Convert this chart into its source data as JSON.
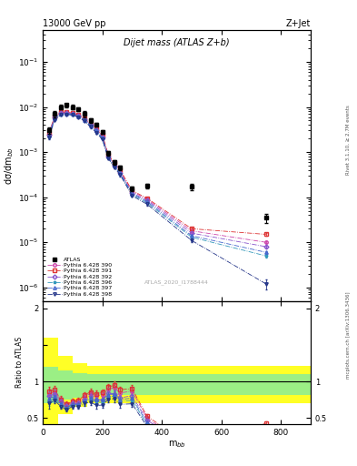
{
  "title_top": "13000 GeV pp",
  "title_right": "Z+Jet",
  "plot_title": "Dijet mass (ATLAS Z+b)",
  "ylabel_main": "dσ/dm$_{bb}$",
  "ylabel_ratio": "Ratio to ATLAS",
  "xlabel": "m$_{bb}$",
  "watermark": "ATLAS_2020_I1788444",
  "right_label_top": "Rivet 3.1.10, ≥ 2.7M events",
  "right_label_bot": "mcplots.cern.ch [arXiv:1306.3436]",
  "atlas_x": [
    20,
    40,
    60,
    80,
    100,
    120,
    140,
    160,
    180,
    200,
    220,
    240,
    260,
    300,
    350,
    500,
    750
  ],
  "atlas_y": [
    0.003,
    0.007,
    0.01,
    0.011,
    0.01,
    0.009,
    0.007,
    0.005,
    0.004,
    0.0028,
    0.00095,
    0.0006,
    0.00045,
    0.000155,
    0.00018,
    0.00017,
    3.5e-05
  ],
  "atlas_yerr": [
    0.0005,
    0.001,
    0.001,
    0.001,
    0.001,
    0.001,
    0.001,
    0.0005,
    0.0004,
    0.0003,
    0.0001,
    7e-05,
    5e-05,
    2e-05,
    2e-05,
    2.5e-05,
    8e-06
  ],
  "pythia_x": [
    20,
    40,
    60,
    80,
    100,
    120,
    140,
    160,
    180,
    200,
    220,
    240,
    260,
    300,
    350,
    500,
    750
  ],
  "series": [
    {
      "label": "Pythia 6.428 390",
      "color": "#cc44aa",
      "marker": "o",
      "linestyle": "-.",
      "y": [
        0.0025,
        0.006,
        0.0075,
        0.0075,
        0.0072,
        0.0065,
        0.0055,
        0.0042,
        0.0032,
        0.0023,
        0.00085,
        0.00055,
        0.00038,
        0.000135,
        9e-05,
        1.8e-05,
        1e-05
      ],
      "yerr": [
        0.0002,
        0.0004,
        0.0004,
        0.0004,
        0.0004,
        0.0003,
        0.0003,
        0.0002,
        0.0002,
        0.0001,
        4e-05,
        3e-05,
        2e-05,
        7e-06,
        5e-06,
        1e-06,
        5e-07
      ]
    },
    {
      "label": "Pythia 6.428 391",
      "color": "#dd3333",
      "marker": "s",
      "linestyle": "-.",
      "y": [
        0.0026,
        0.0062,
        0.0076,
        0.0076,
        0.0073,
        0.0067,
        0.0057,
        0.0043,
        0.0033,
        0.0024,
        0.00088,
        0.00057,
        0.0004,
        0.00014,
        9.5e-05,
        2e-05,
        1.5e-05
      ],
      "yerr": [
        0.0002,
        0.0004,
        0.0004,
        0.0004,
        0.0004,
        0.0003,
        0.0003,
        0.0002,
        0.0002,
        0.0001,
        4e-05,
        3e-05,
        2e-05,
        7e-06,
        5e-06,
        1e-06,
        8e-07
      ]
    },
    {
      "label": "Pythia 6.428 392",
      "color": "#8855cc",
      "marker": "D",
      "linestyle": "-.",
      "y": [
        0.0024,
        0.0058,
        0.0073,
        0.0073,
        0.007,
        0.0063,
        0.0053,
        0.004,
        0.003,
        0.0021,
        0.0008,
        0.0005,
        0.00035,
        0.000125,
        8.5e-05,
        1.6e-05,
        8e-06
      ],
      "yerr": [
        0.0002,
        0.0004,
        0.0004,
        0.0004,
        0.0004,
        0.0003,
        0.0003,
        0.0002,
        0.0002,
        0.0001,
        4e-05,
        3e-05,
        2e-05,
        7e-06,
        5e-06,
        1e-06,
        5e-07
      ]
    },
    {
      "label": "Pythia 6.428 396",
      "color": "#3399bb",
      "marker": "*",
      "linestyle": "-.",
      "y": [
        0.0022,
        0.0054,
        0.0068,
        0.007,
        0.0068,
        0.0061,
        0.0051,
        0.0038,
        0.0029,
        0.002,
        0.00075,
        0.00048,
        0.00033,
        0.000115,
        7.5e-05,
        1.3e-05,
        5e-06
      ],
      "yerr": [
        0.0002,
        0.0003,
        0.0003,
        0.0003,
        0.0003,
        0.0003,
        0.0003,
        0.0002,
        0.0002,
        0.0001,
        4e-05,
        3e-05,
        2e-05,
        6e-06,
        4e-06,
        1e-06,
        4e-07
      ]
    },
    {
      "label": "Pythia 6.428 397",
      "color": "#4466cc",
      "marker": "^",
      "linestyle": "-.",
      "y": [
        0.0023,
        0.0056,
        0.007,
        0.0071,
        0.0069,
        0.0062,
        0.0052,
        0.0039,
        0.003,
        0.0021,
        0.00078,
        0.0005,
        0.00034,
        0.00012,
        8e-05,
        1.4e-05,
        6e-06
      ],
      "yerr": [
        0.0002,
        0.0003,
        0.0003,
        0.0003,
        0.0003,
        0.0003,
        0.0003,
        0.0002,
        0.0002,
        0.0001,
        4e-05,
        3e-05,
        2e-05,
        6e-06,
        4e-06,
        1e-06,
        4e-07
      ]
    },
    {
      "label": "Pythia 6.428 398",
      "color": "#223388",
      "marker": "v",
      "linestyle": "-.",
      "y": [
        0.0021,
        0.0052,
        0.0066,
        0.0068,
        0.0066,
        0.0059,
        0.0049,
        0.0036,
        0.0027,
        0.0019,
        0.00072,
        0.00046,
        0.00031,
        0.000108,
        7e-05,
        1.1e-05,
        1.2e-06
      ],
      "yerr": [
        0.0002,
        0.0003,
        0.0003,
        0.0003,
        0.0003,
        0.0002,
        0.0002,
        0.0002,
        0.0002,
        0.0001,
        4e-05,
        3e-05,
        2e-05,
        6e-06,
        4e-06,
        9e-07,
        3e-07
      ]
    }
  ],
  "ylim_main": [
    5e-07,
    0.5
  ],
  "ylim_ratio": [
    0.42,
    2.1
  ],
  "xlim": [
    0,
    900
  ],
  "xticks": [
    0,
    200,
    400,
    600,
    800
  ],
  "band_edges": [
    0,
    50,
    100,
    150,
    200,
    250,
    300,
    600,
    900
  ],
  "yellow_lo": [
    1.6,
    1.35,
    1.25,
    1.22,
    1.22,
    1.22,
    1.22,
    1.22,
    1.22
  ],
  "yellow_hi": [
    0.42,
    0.55,
    0.65,
    0.7,
    0.7,
    0.7,
    0.7,
    0.7,
    0.7
  ],
  "green_lo": [
    1.2,
    1.15,
    1.12,
    1.1,
    1.1,
    1.1,
    1.1,
    1.1,
    1.1
  ],
  "green_hi": [
    0.7,
    0.75,
    0.78,
    0.82,
    0.82,
    0.82,
    0.82,
    0.82,
    0.82
  ]
}
